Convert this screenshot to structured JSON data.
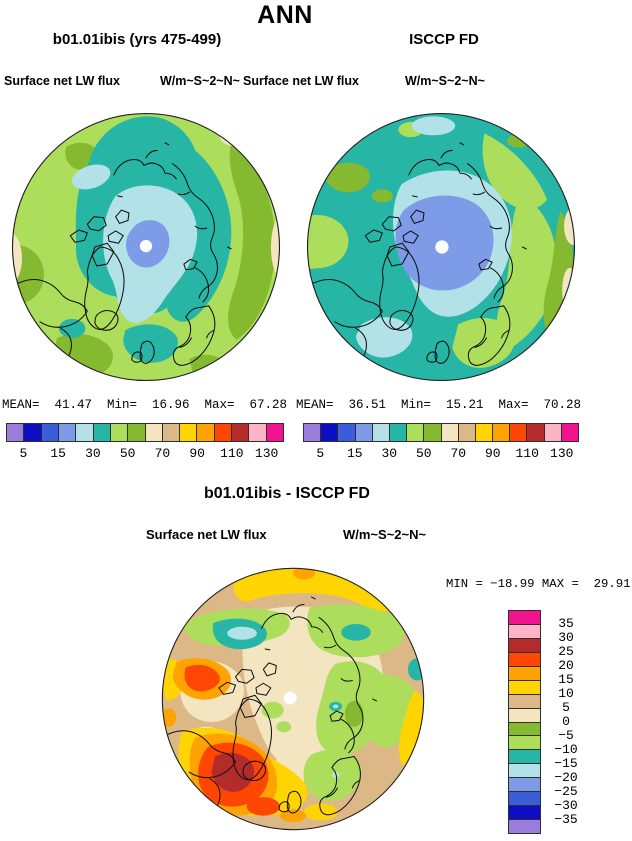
{
  "header": {
    "title": "ANN"
  },
  "panels": {
    "model": {
      "title": "b01.01ibis (yrs 475-499)",
      "variable": "Surface net LW flux",
      "units": "W/m~S~2~N~",
      "stats_line": "MEAN=  41.47  Min=  16.96  Max=  67.28"
    },
    "obs": {
      "title": "ISCCP FD",
      "variable": "Surface net LW flux",
      "units": "W/m~S~2~N~",
      "stats_line": "MEAN=  36.51  Min=  15.21  Max=  70.28"
    },
    "diff": {
      "title": "b01.01ibis - ISCCP FD",
      "variable": "Surface net LW flux",
      "units": "W/m~S~2~N~",
      "stats_line": "MIN = −18.99 MAX =  29.91"
    }
  },
  "colorbar": {
    "palette_low_to_high": [
      "#9B7EDC",
      "#0D0DC4",
      "#3A5ED9",
      "#7E9BE8",
      "#B3E1E8",
      "#27B6A5",
      "#ACDE5C",
      "#85B92F",
      "#F2E5C0",
      "#DDB887",
      "#FFD403",
      "#FFA303",
      "#FF4603",
      "#B32B2B",
      "#FFB3C6",
      "#F2148F"
    ],
    "h_ticks": [
      {
        "label": "5",
        "pos": 1
      },
      {
        "label": "15",
        "pos": 3
      },
      {
        "label": "30",
        "pos": 5
      },
      {
        "label": "50",
        "pos": 7
      },
      {
        "label": "70",
        "pos": 9
      },
      {
        "label": "90",
        "pos": 11
      },
      {
        "label": "110",
        "pos": 13
      },
      {
        "label": "130",
        "pos": 15
      }
    ],
    "v_labels_top_to_bottom": [
      "35",
      "30",
      "25",
      "20",
      "15",
      "10",
      "5",
      "0",
      "−5",
      "−10",
      "−15",
      "−20",
      "−25",
      "−30",
      "−35"
    ]
  },
  "map_colors": {
    "light_green": "#ACDE5C",
    "olive_green": "#85B92F",
    "teal": "#27B6A5",
    "pale_blue": "#B3E1E8",
    "cornflower": "#7E9BE8",
    "cream": "#F2E5C0",
    "tan": "#DDB887",
    "yellow": "#FFD403",
    "orange": "#FFA303",
    "orange_red": "#FF4603",
    "firebrick": "#B32B2B",
    "pink": "#FFB3C6",
    "magenta": "#F2148F",
    "coastline": "#101010",
    "pole_dot": "#FFFFFF"
  },
  "chart_data": [
    {
      "type": "heatmap",
      "panel": "top-left",
      "title": "b01.01ibis (yrs 475-499)",
      "variable": "Surface net LW flux",
      "units": "W/m~S~2~N~",
      "projection": "north polar stereographic",
      "season": "ANN",
      "stats": {
        "mean": 41.47,
        "min": 16.96,
        "max": 67.28
      },
      "levels": [
        5,
        10,
        15,
        20,
        30,
        40,
        50,
        60,
        70,
        80,
        90,
        100,
        110,
        120,
        130
      ],
      "colorbar_ticks": [
        5,
        15,
        30,
        50,
        70,
        90,
        110,
        130
      ],
      "legend_position": "below"
    },
    {
      "type": "heatmap",
      "panel": "top-right",
      "title": "ISCCP FD",
      "variable": "Surface net LW flux",
      "units": "W/m~S~2~N~",
      "projection": "north polar stereographic",
      "season": "ANN",
      "stats": {
        "mean": 36.51,
        "min": 15.21,
        "max": 70.28
      },
      "levels": [
        5,
        10,
        15,
        20,
        30,
        40,
        50,
        60,
        70,
        80,
        90,
        100,
        110,
        120,
        130
      ],
      "colorbar_ticks": [
        5,
        15,
        30,
        50,
        70,
        90,
        110,
        130
      ],
      "legend_position": "below"
    },
    {
      "type": "heatmap",
      "panel": "bottom",
      "title": "b01.01ibis - ISCCP FD",
      "variable": "Surface net LW flux",
      "units": "W/m~S~2~N~",
      "projection": "north polar stereographic",
      "season": "ANN",
      "stats": {
        "min": -18.99,
        "max": 29.91
      },
      "levels": [
        -35,
        -30,
        -25,
        -20,
        -15,
        -10,
        -5,
        0,
        5,
        10,
        15,
        20,
        25,
        30,
        35
      ],
      "colorbar_ticks": [
        35,
        30,
        25,
        20,
        15,
        10,
        5,
        0,
        -5,
        -10,
        -15,
        -20,
        -25,
        -30,
        -35
      ],
      "legend_position": "right-vertical"
    }
  ]
}
